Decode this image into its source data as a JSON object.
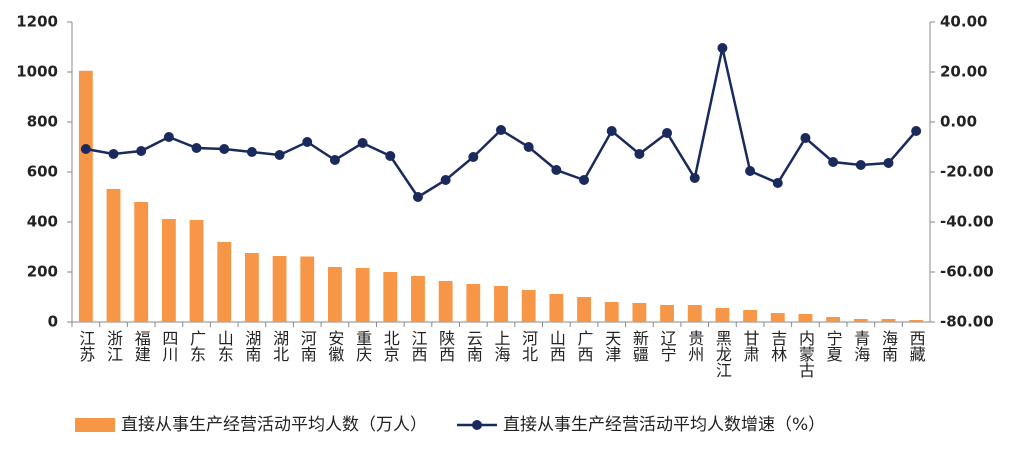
{
  "chart_data": {
    "type": "combo",
    "categories": [
      "江苏",
      "浙江",
      "福建",
      "四川",
      "广东",
      "山东",
      "湖南",
      "湖北",
      "河南",
      "安徽",
      "重庆",
      "北京",
      "江西",
      "陕西",
      "云南",
      "上海",
      "河北",
      "山西",
      "广西",
      "天津",
      "新疆",
      "辽宁",
      "贵州",
      "黑龙江",
      "甘肃",
      "吉林",
      "内蒙古",
      "宁夏",
      "青海",
      "海南",
      "西藏"
    ],
    "series": [
      {
        "name": "直接从事生产经营活动平均人数（万人）",
        "type": "bar",
        "color": "#f79646",
        "values": [
          1005,
          532,
          480,
          412,
          408,
          320,
          276,
          264,
          262,
          220,
          216,
          200,
          184,
          164,
          152,
          144,
          128,
          112,
          100,
          80,
          76,
          68,
          68,
          56,
          48,
          36,
          32,
          20,
          12,
          12,
          8
        ]
      },
      {
        "name": "直接从事生产经营活动平均人数增速（%）",
        "type": "line",
        "axis": "y2",
        "color": "#1b2a5c",
        "values": [
          -10.8,
          -12.8,
          -11.6,
          -6,
          -10.4,
          -10.8,
          -12,
          -13.2,
          -8,
          -15.2,
          -8.4,
          -13.6,
          -30,
          -23.2,
          -14,
          -3.2,
          -10,
          -19.2,
          -23.2,
          -3.6,
          -12.8,
          -4.4,
          -22.4,
          29.6,
          -19.6,
          -24.4,
          -6.4,
          -16,
          -17.2,
          -16.4,
          -3.6
        ]
      }
    ],
    "ylim": [
      0,
      1200
    ],
    "yticks": [
      0,
      200,
      400,
      600,
      800,
      1000,
      1200
    ],
    "y2lim": [
      -80,
      40
    ],
    "y2ticks": [
      {
        "value": -80,
        "label": "-80.00"
      },
      {
        "value": -60,
        "label": "-60.00"
      },
      {
        "value": -40,
        "label": "-40.00"
      },
      {
        "value": -20,
        "label": "-20.00"
      },
      {
        "value": 0,
        "label": "0.00"
      },
      {
        "value": 20,
        "label": "20.00"
      },
      {
        "value": 40,
        "label": "40.00"
      }
    ],
    "grid": false,
    "legend": "bottom"
  }
}
